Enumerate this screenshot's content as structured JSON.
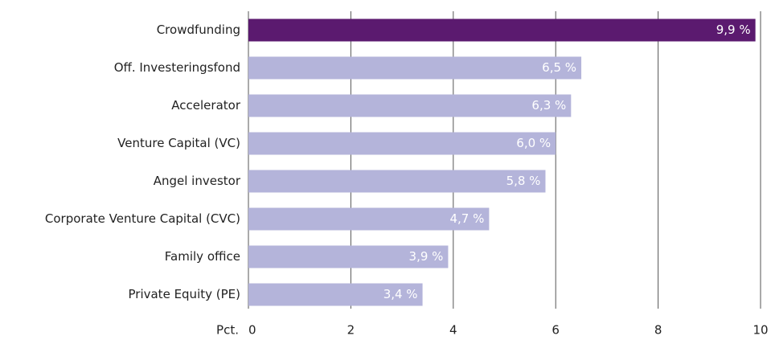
{
  "chart_data": {
    "type": "barh",
    "x_label": "Pct.",
    "categories": [
      "Crowdfunding",
      "Off. Investeringsfond",
      "Accelerator",
      "Venture Capital (VC)",
      "Angel investor",
      "Corporate Venture Capital (CVC)",
      "Family office",
      "Private Equity (PE)"
    ],
    "values": [
      9.9,
      6.5,
      6.3,
      6.0,
      5.8,
      4.7,
      3.9,
      3.4
    ],
    "value_labels": [
      "9,9 %",
      "6,5 %",
      "6,3 %",
      "6,0 %",
      "5,8 %",
      "4,7 %",
      "3,9 %",
      "3,4 %"
    ],
    "colors": [
      "#5b1a6f",
      "#b4b4da",
      "#b4b4da",
      "#b4b4da",
      "#b4b4da",
      "#b4b4da",
      "#b4b4da",
      "#b4b4da"
    ],
    "xlim": [
      0,
      10
    ],
    "xticks": [
      0,
      2,
      4,
      6,
      8,
      10
    ],
    "grid": true
  }
}
